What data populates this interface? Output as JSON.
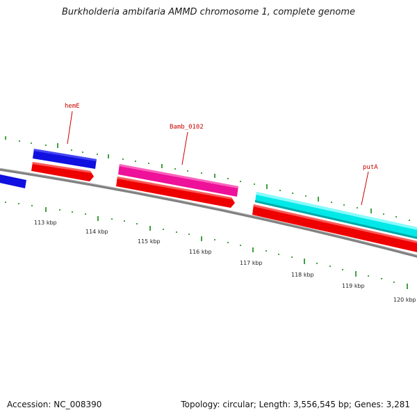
{
  "title": "Burkholderia ambifaria AMMD chromosome 1, complete genome",
  "footer": {
    "accession": "Accession: NC_008390",
    "summary": "Topology: circular; Length: 3,556,545 bp; Genes: 3,281"
  },
  "scale_labels": [
    "113 kbp",
    "114 kbp",
    "115 kbp",
    "116 kbp",
    "117 kbp",
    "118 kbp",
    "119 kbp",
    "120 kbp"
  ],
  "gene_labels": {
    "hemE": "hemE",
    "bamb": "Bamb_0102",
    "putA": "putA"
  },
  "colors": {
    "blue_gene": "#1010e0",
    "red_gene": "#ee0000",
    "pink_gene": "#ee1199",
    "cyan_gene": "#00e8e8",
    "backbone": "#808080",
    "tick": "#118811",
    "label_line": "#cc0000"
  }
}
